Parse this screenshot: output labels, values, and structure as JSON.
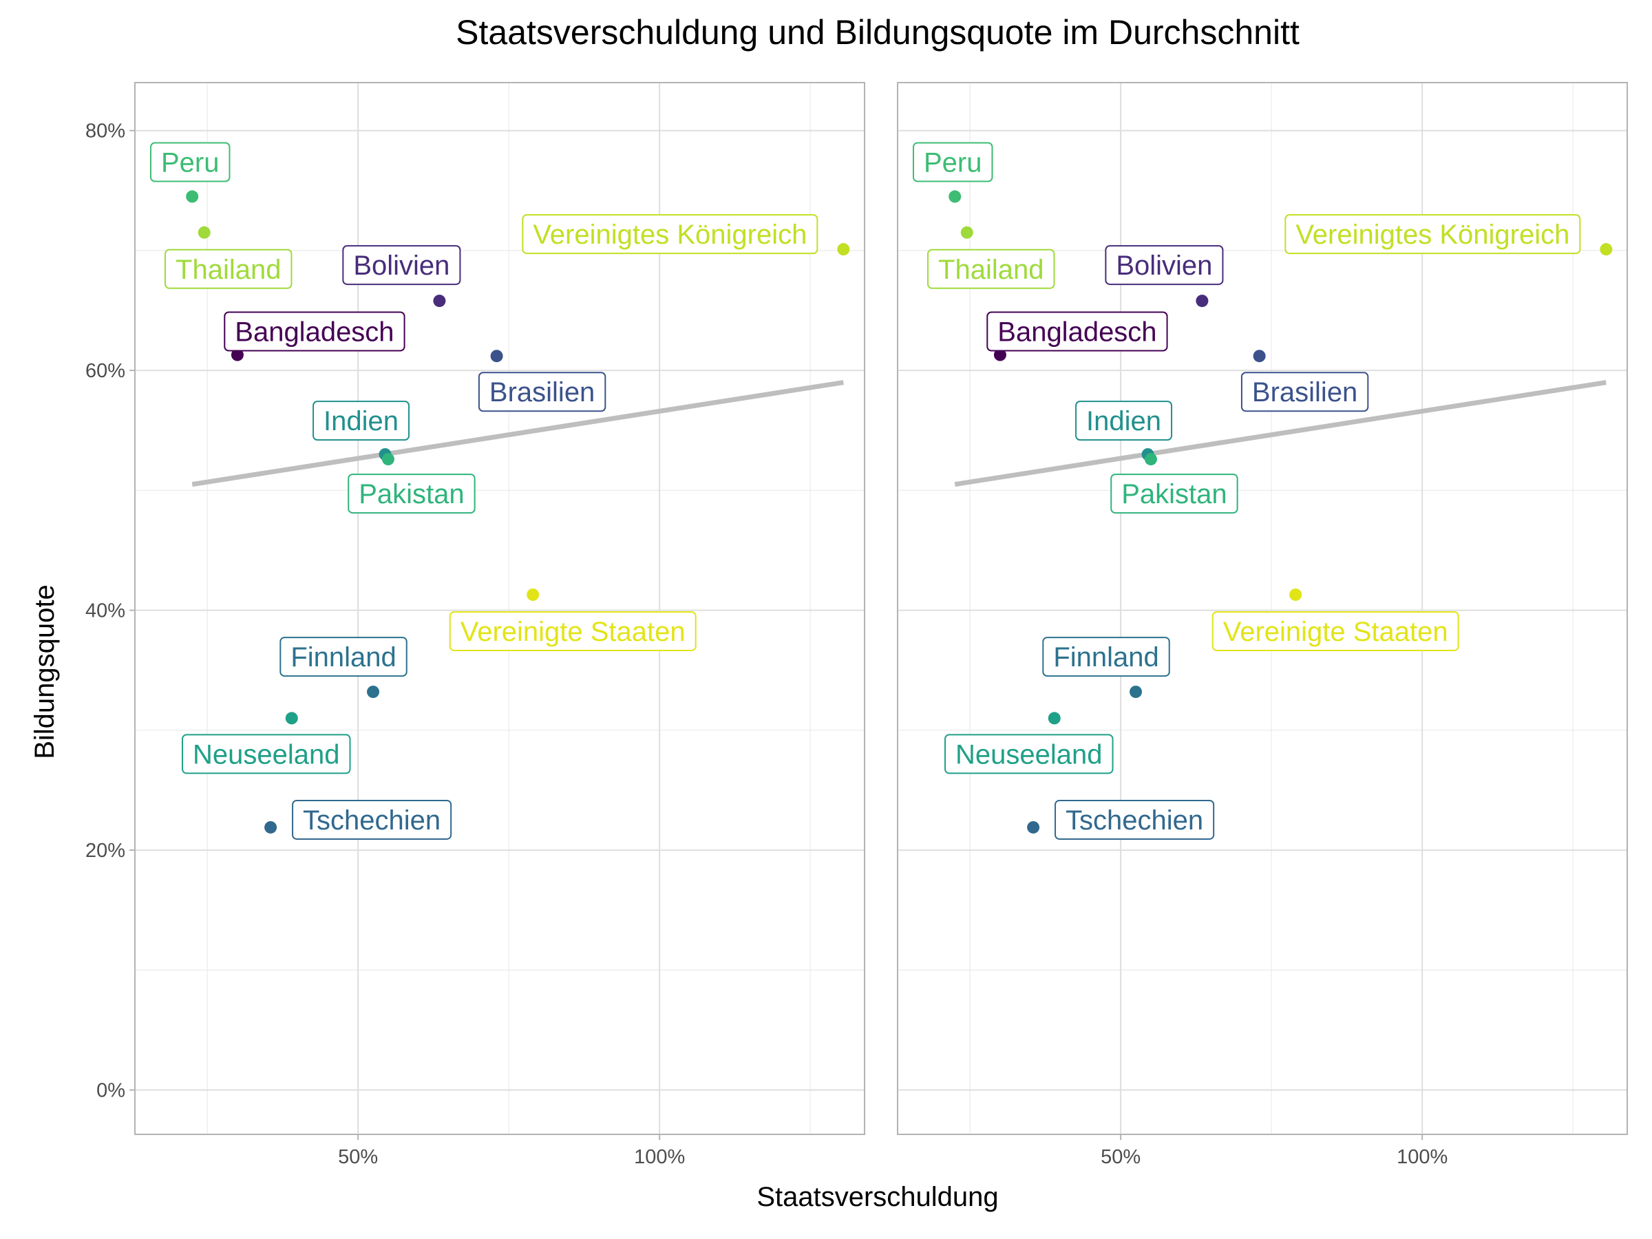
{
  "chart_data": {
    "type": "scatter",
    "title": "Staatsverschuldung und Bildungsquote im Durchschnitt",
    "xlabel": "Staatsverschuldung",
    "ylabel": "Bildungsquote",
    "xlim": [
      13,
      134
    ],
    "ylim": [
      -3.7,
      84
    ],
    "x_ticks": [
      {
        "value": 50,
        "label": "50%"
      },
      {
        "value": 100,
        "label": "100%"
      }
    ],
    "y_ticks": [
      {
        "value": 0,
        "label": "0%"
      },
      {
        "value": 20,
        "label": "20%"
      },
      {
        "value": 40,
        "label": "40%"
      },
      {
        "value": 60,
        "label": "60%"
      },
      {
        "value": 80,
        "label": "80%"
      }
    ],
    "grid": true,
    "facets": 2,
    "trend_line": {
      "x": [
        22.5,
        130.5
      ],
      "y": [
        50.5,
        59.0
      ],
      "color": "#bebebe"
    },
    "points": [
      {
        "country": "Peru",
        "x": 22.5,
        "y": 74.5,
        "color": "#3dbc74"
      },
      {
        "country": "Thailand",
        "x": 24.5,
        "y": 71.5,
        "color": "#9fda3a"
      },
      {
        "country": "Vereinigtes Königreich",
        "x": 130.5,
        "y": 70.1,
        "color": "#c2df23"
      },
      {
        "country": "Bolivien",
        "x": 63.5,
        "y": 65.8,
        "color": "#472d7b"
      },
      {
        "country": "Bangladesch",
        "x": 30,
        "y": 61.3,
        "color": "#440154"
      },
      {
        "country": "Brasilien",
        "x": 73,
        "y": 61.2,
        "color": "#3b528b"
      },
      {
        "country": "Indien",
        "x": 54.5,
        "y": 53.0,
        "color": "#21908d"
      },
      {
        "country": "Pakistan",
        "x": 55,
        "y": 52.6,
        "color": "#2fb47c"
      },
      {
        "country": "Vereinigte Staaten",
        "x": 79,
        "y": 41.3,
        "color": "#e2e418"
      },
      {
        "country": "Finnland",
        "x": 52.5,
        "y": 33.2,
        "color": "#2c728e"
      },
      {
        "country": "Neuseeland",
        "x": 39,
        "y": 31.0,
        "color": "#1fa088"
      },
      {
        "country": "Tschechien",
        "x": 35.5,
        "y": 21.9,
        "color": "#31688e"
      }
    ]
  }
}
